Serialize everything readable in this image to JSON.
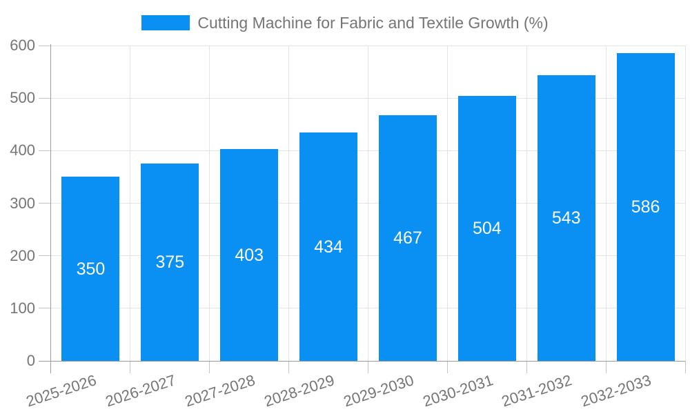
{
  "chart_data": {
    "type": "bar",
    "title": "Cutting Machine for Fabric and Textile Growth (%)",
    "categories": [
      "2025-2026",
      "2026-2027",
      "2027-2028",
      "2028-2029",
      "2029-2030",
      "2030-2031",
      "2031-2032",
      "2032-2033"
    ],
    "values": [
      350,
      375,
      403,
      434,
      467,
      504,
      543,
      586
    ],
    "xlabel": "",
    "ylabel": "",
    "ylim": [
      0,
      600
    ],
    "yticks": [
      0,
      100,
      200,
      300,
      400,
      500,
      600
    ],
    "grid": true,
    "legend_position": "top",
    "value_labels": "inside-center"
  },
  "legend": {
    "label": "Cutting Machine for Fabric and Textile Growth (%)",
    "swatch_icon": "legend-swatch"
  },
  "colors": {
    "bar": "#0A8FF2",
    "grid": "#E3E3E3",
    "axis": "#9A9A9A",
    "tick": "#C4C4C4",
    "text": "#757575",
    "value_label": "#FFFFFF",
    "background": "#FFFFFF"
  }
}
